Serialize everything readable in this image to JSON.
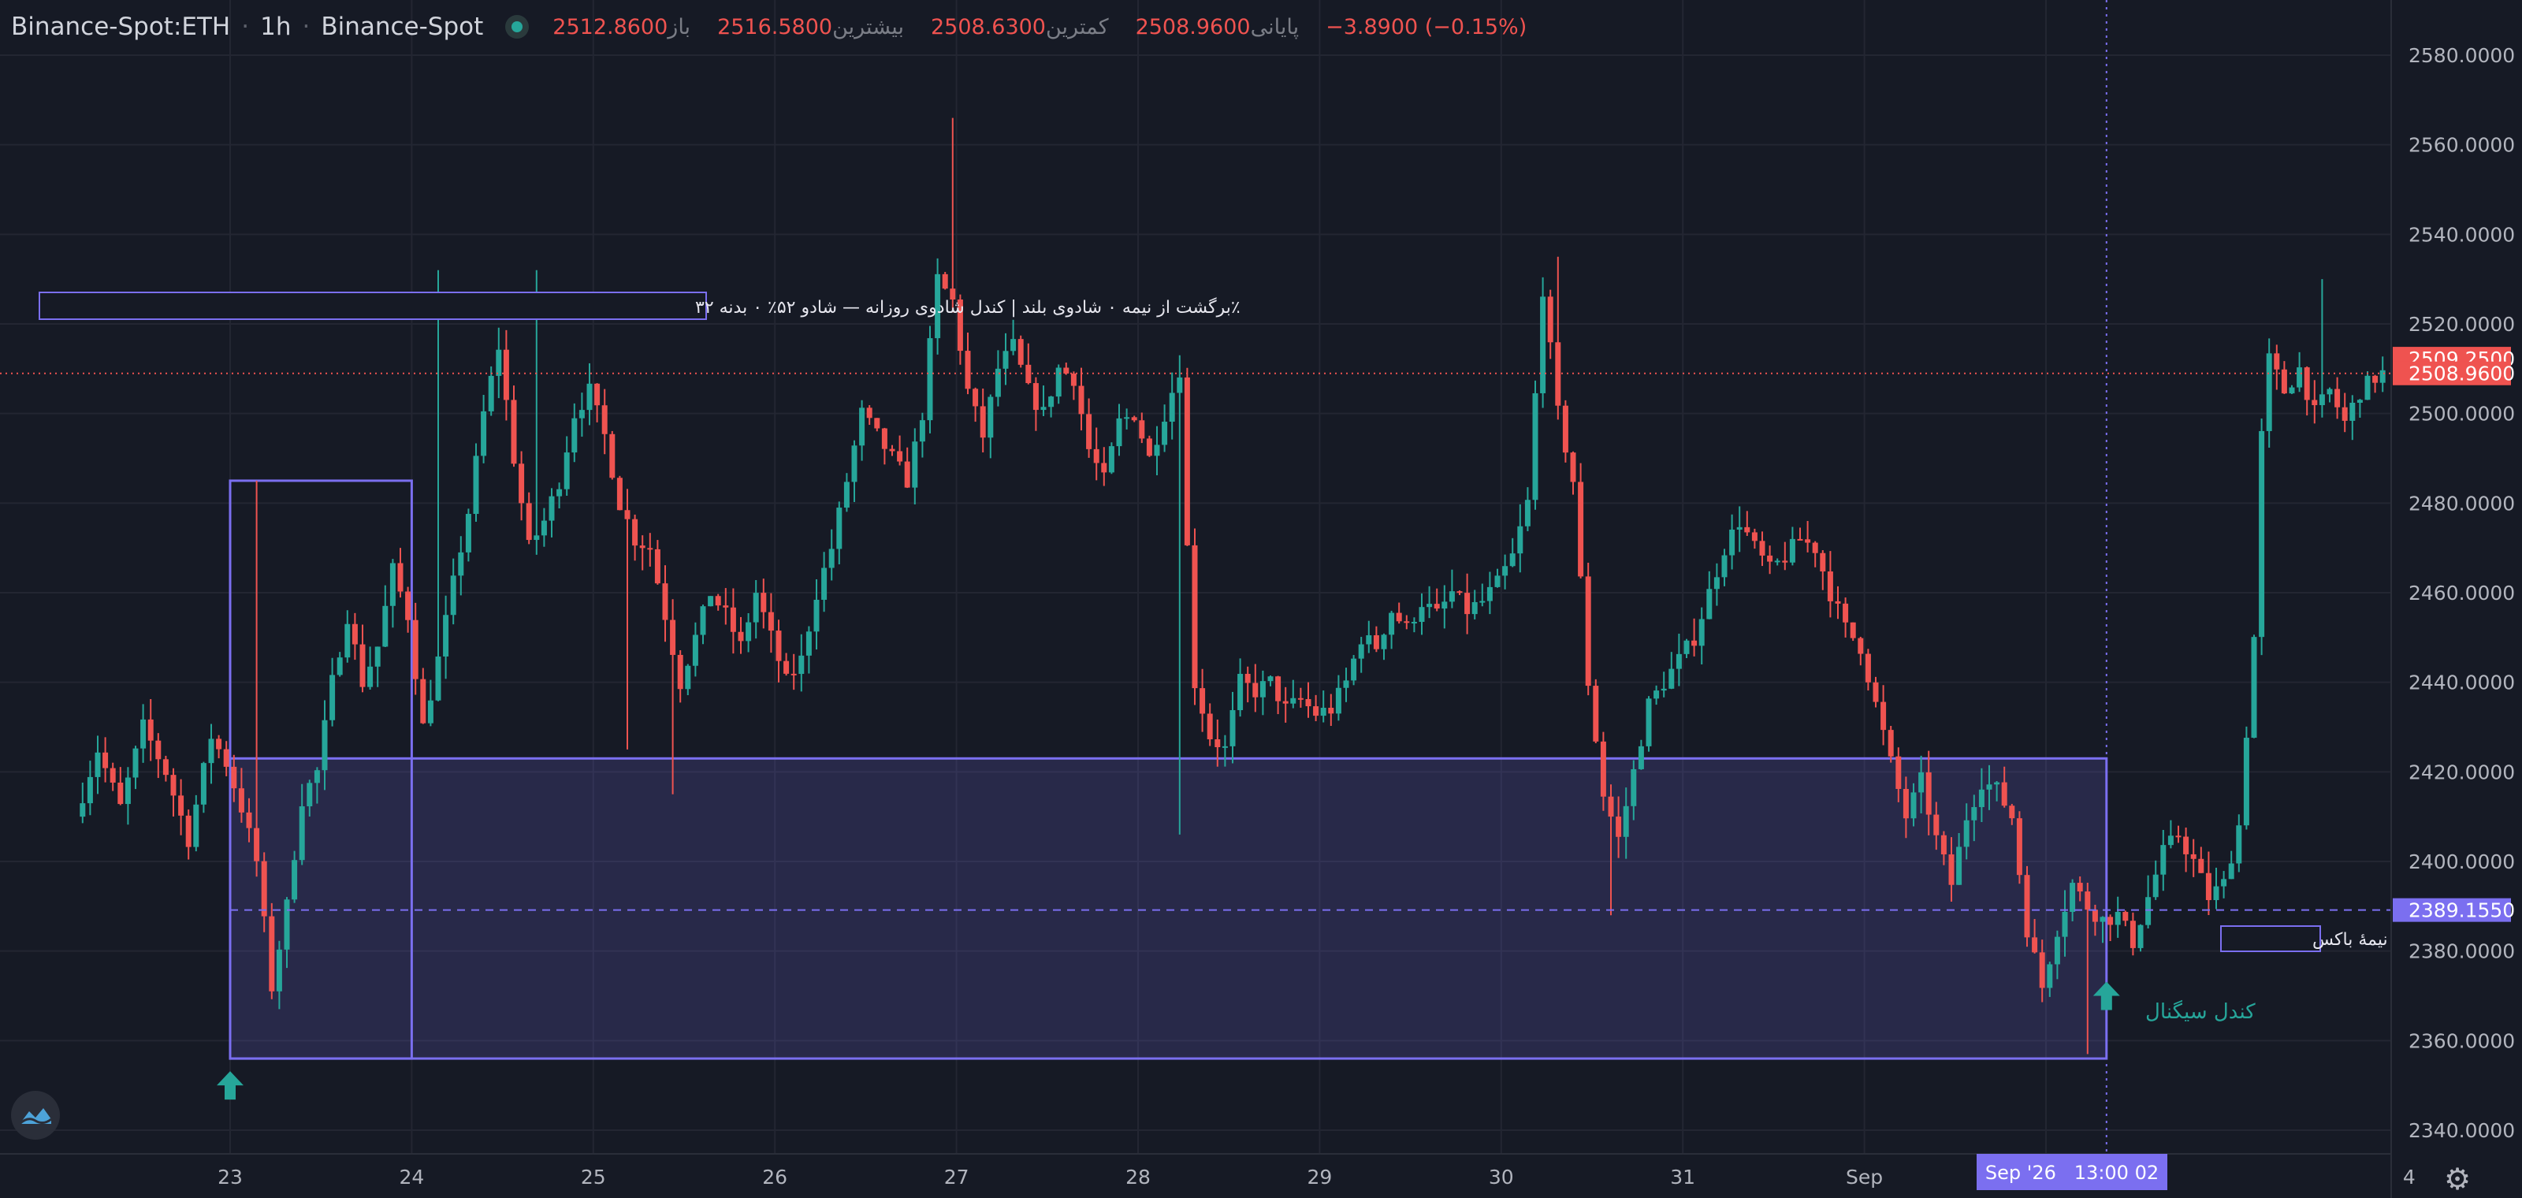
{
  "header": {
    "symbol": "Binance-Spot:ETH",
    "interval": "1h",
    "exchange": "Binance-Spot",
    "ohlc": [
      {
        "label": "باز",
        "value": "2512.8600"
      },
      {
        "label": "بیشترین",
        "value": "2516.5800"
      },
      {
        "label": "کمترین",
        "value": "2508.6300"
      },
      {
        "label": "پایانی",
        "value": "2508.9600"
      }
    ],
    "change": "−3.8900 (−0.15%)"
  },
  "annotations": {
    "pattern_label": "٪برگشت از نیمه ۰ شادوی بلند | کندل شادوی روزانه — شادو ۵۲٪ ۰ بدنه ۳۲",
    "box_mid_label": "نیمهٔ باکس",
    "signal_label": "کندل سیگنال"
  },
  "crosshair": {
    "time_label": "Sep '26   13:00 02"
  },
  "colors": {
    "up": "#26a69a",
    "down": "#ef5350",
    "box": "#7b6ff0",
    "bg": "#161a25",
    "grid": "#232632",
    "text": "#b2b5be"
  },
  "chart_data": {
    "type": "candlestick",
    "y_range": [
      2330,
      2590
    ],
    "y_ticks": [
      "2580.0000",
      "2560.0000",
      "2540.0000",
      "2520.0000",
      "2500.0000",
      "2480.0000",
      "2460.0000",
      "2440.0000",
      "2420.0000",
      "2400.0000",
      "2380.0000",
      "2360.0000",
      "2340.0000"
    ],
    "x_range": [
      0,
      289
    ],
    "x_ticks": [
      {
        "label": "23",
        "x": 20
      },
      {
        "label": "24",
        "x": 44
      },
      {
        "label": "25",
        "x": 68
      },
      {
        "label": "26",
        "x": 92
      },
      {
        "label": "27",
        "x": 116
      },
      {
        "label": "28",
        "x": 140
      },
      {
        "label": "29",
        "x": 164
      },
      {
        "label": "30",
        "x": 188
      },
      {
        "label": "31",
        "x": 212
      },
      {
        "label": "Sep",
        "x": 236
      },
      {
        "label": "2",
        "x": 260
      },
      {
        "label": "4",
        "x": 308
      }
    ],
    "price_lines": [
      {
        "label": "2509.2500",
        "value": 2509.25,
        "style": "badge"
      },
      {
        "label": "2508.9600",
        "value": 2508.96,
        "style": "dotted"
      },
      {
        "label": "2389.1550",
        "value": 2389.155,
        "style": "dashed"
      }
    ],
    "boxes": [
      {
        "x0": 20,
        "x1": 44,
        "y0": 2356,
        "y1": 2485
      },
      {
        "x0": 20,
        "x1": 268,
        "y0": 2356,
        "y1": 2423
      }
    ],
    "crosshair_x": 268,
    "signal_arrows": [
      {
        "x": 20,
        "y": 2350
      },
      {
        "x": 268,
        "y": 2370
      }
    ],
    "candle_path": [
      {
        "x": 0,
        "v": 2410
      },
      {
        "x": 3,
        "v": 2425
      },
      {
        "x": 6,
        "v": 2412
      },
      {
        "x": 9,
        "v": 2430
      },
      {
        "x": 12,
        "v": 2420
      },
      {
        "x": 15,
        "v": 2405
      },
      {
        "x": 18,
        "v": 2428
      },
      {
        "x": 20,
        "v": 2422
      },
      {
        "x": 22,
        "v": 2412
      },
      {
        "x": 24,
        "v": 2400
      },
      {
        "x": 26,
        "v": 2372
      },
      {
        "x": 28,
        "v": 2390
      },
      {
        "x": 30,
        "v": 2414
      },
      {
        "x": 32,
        "v": 2420
      },
      {
        "x": 34,
        "v": 2440
      },
      {
        "x": 36,
        "v": 2455
      },
      {
        "x": 38,
        "v": 2440
      },
      {
        "x": 40,
        "v": 2448
      },
      {
        "x": 42,
        "v": 2465
      },
      {
        "x": 44,
        "v": 2455
      },
      {
        "x": 46,
        "v": 2430
      },
      {
        "x": 48,
        "v": 2445
      },
      {
        "x": 50,
        "v": 2462
      },
      {
        "x": 52,
        "v": 2478
      },
      {
        "x": 54,
        "v": 2500
      },
      {
        "x": 56,
        "v": 2515
      },
      {
        "x": 58,
        "v": 2490
      },
      {
        "x": 60,
        "v": 2470
      },
      {
        "x": 62,
        "v": 2476
      },
      {
        "x": 64,
        "v": 2485
      },
      {
        "x": 66,
        "v": 2500
      },
      {
        "x": 68,
        "v": 2505
      },
      {
        "x": 70,
        "v": 2495
      },
      {
        "x": 72,
        "v": 2480
      },
      {
        "x": 74,
        "v": 2472
      },
      {
        "x": 76,
        "v": 2470
      },
      {
        "x": 78,
        "v": 2455
      },
      {
        "x": 80,
        "v": 2440
      },
      {
        "x": 82,
        "v": 2450
      },
      {
        "x": 84,
        "v": 2460
      },
      {
        "x": 86,
        "v": 2455
      },
      {
        "x": 88,
        "v": 2448
      },
      {
        "x": 90,
        "v": 2460
      },
      {
        "x": 92,
        "v": 2450
      },
      {
        "x": 94,
        "v": 2440
      },
      {
        "x": 96,
        "v": 2445
      },
      {
        "x": 98,
        "v": 2460
      },
      {
        "x": 100,
        "v": 2470
      },
      {
        "x": 102,
        "v": 2485
      },
      {
        "x": 104,
        "v": 2500
      },
      {
        "x": 106,
        "v": 2495
      },
      {
        "x": 108,
        "v": 2490
      },
      {
        "x": 110,
        "v": 2485
      },
      {
        "x": 112,
        "v": 2500
      },
      {
        "x": 114,
        "v": 2530
      },
      {
        "x": 116,
        "v": 2525
      },
      {
        "x": 118,
        "v": 2505
      },
      {
        "x": 120,
        "v": 2495
      },
      {
        "x": 122,
        "v": 2510
      },
      {
        "x": 124,
        "v": 2515
      },
      {
        "x": 126,
        "v": 2505
      },
      {
        "x": 128,
        "v": 2500
      },
      {
        "x": 130,
        "v": 2510
      },
      {
        "x": 132,
        "v": 2508
      },
      {
        "x": 134,
        "v": 2492
      },
      {
        "x": 136,
        "v": 2485
      },
      {
        "x": 138,
        "v": 2498
      },
      {
        "x": 140,
        "v": 2500
      },
      {
        "x": 142,
        "v": 2490
      },
      {
        "x": 144,
        "v": 2500
      },
      {
        "x": 146,
        "v": 2510
      },
      {
        "x": 147,
        "v": 2470
      },
      {
        "x": 148,
        "v": 2440
      },
      {
        "x": 150,
        "v": 2428
      },
      {
        "x": 152,
        "v": 2425
      },
      {
        "x": 154,
        "v": 2440
      },
      {
        "x": 156,
        "v": 2438
      },
      {
        "x": 158,
        "v": 2440
      },
      {
        "x": 160,
        "v": 2434
      },
      {
        "x": 162,
        "v": 2436
      },
      {
        "x": 164,
        "v": 2433
      },
      {
        "x": 166,
        "v": 2434
      },
      {
        "x": 168,
        "v": 2440
      },
      {
        "x": 170,
        "v": 2450
      },
      {
        "x": 172,
        "v": 2448
      },
      {
        "x": 174,
        "v": 2456
      },
      {
        "x": 176,
        "v": 2452
      },
      {
        "x": 178,
        "v": 2458
      },
      {
        "x": 180,
        "v": 2455
      },
      {
        "x": 182,
        "v": 2460
      },
      {
        "x": 184,
        "v": 2456
      },
      {
        "x": 186,
        "v": 2458
      },
      {
        "x": 188,
        "v": 2462
      },
      {
        "x": 190,
        "v": 2468
      },
      {
        "x": 192,
        "v": 2480
      },
      {
        "x": 194,
        "v": 2528
      },
      {
        "x": 196,
        "v": 2500
      },
      {
        "x": 198,
        "v": 2485
      },
      {
        "x": 200,
        "v": 2440
      },
      {
        "x": 202,
        "v": 2415
      },
      {
        "x": 204,
        "v": 2405
      },
      {
        "x": 206,
        "v": 2420
      },
      {
        "x": 208,
        "v": 2435
      },
      {
        "x": 210,
        "v": 2440
      },
      {
        "x": 212,
        "v": 2445
      },
      {
        "x": 214,
        "v": 2450
      },
      {
        "x": 216,
        "v": 2460
      },
      {
        "x": 218,
        "v": 2470
      },
      {
        "x": 220,
        "v": 2476
      },
      {
        "x": 222,
        "v": 2470
      },
      {
        "x": 224,
        "v": 2465
      },
      {
        "x": 226,
        "v": 2468
      },
      {
        "x": 228,
        "v": 2472
      },
      {
        "x": 230,
        "v": 2470
      },
      {
        "x": 232,
        "v": 2460
      },
      {
        "x": 234,
        "v": 2452
      },
      {
        "x": 236,
        "v": 2448
      },
      {
        "x": 238,
        "v": 2435
      },
      {
        "x": 240,
        "v": 2422
      },
      {
        "x": 242,
        "v": 2410
      },
      {
        "x": 244,
        "v": 2418
      },
      {
        "x": 246,
        "v": 2405
      },
      {
        "x": 248,
        "v": 2395
      },
      {
        "x": 250,
        "v": 2410
      },
      {
        "x": 252,
        "v": 2418
      },
      {
        "x": 254,
        "v": 2416
      },
      {
        "x": 256,
        "v": 2410
      },
      {
        "x": 258,
        "v": 2385
      },
      {
        "x": 260,
        "v": 2372
      },
      {
        "x": 262,
        "v": 2385
      },
      {
        "x": 264,
        "v": 2395
      },
      {
        "x": 266,
        "v": 2390
      },
      {
        "x": 268,
        "v": 2387
      },
      {
        "x": 270,
        "v": 2388
      },
      {
        "x": 272,
        "v": 2382
      },
      {
        "x": 274,
        "v": 2392
      },
      {
        "x": 276,
        "v": 2402
      },
      {
        "x": 278,
        "v": 2406
      },
      {
        "x": 280,
        "v": 2400
      },
      {
        "x": 282,
        "v": 2392
      },
      {
        "x": 284,
        "v": 2395
      },
      {
        "x": 286,
        "v": 2408
      },
      {
        "x": 288,
        "v": 2450
      },
      {
        "x": 289,
        "v": 2495
      },
      {
        "x": 290,
        "v": 2512
      },
      {
        "x": 292,
        "v": 2505
      },
      {
        "x": 294,
        "v": 2510
      },
      {
        "x": 296,
        "v": 2500
      },
      {
        "x": 298,
        "v": 2505
      },
      {
        "x": 300,
        "v": 2498
      },
      {
        "x": 302,
        "v": 2505
      },
      {
        "x": 304,
        "v": 2508
      },
      {
        "x": 305,
        "v": 2508.96
      }
    ],
    "wick_highlights": [
      {
        "x": 23,
        "high": 2485
      },
      {
        "x": 47,
        "high": 2532
      },
      {
        "x": 60,
        "high": 2532
      },
      {
        "x": 115,
        "high": 2566
      },
      {
        "x": 195,
        "high": 2535
      },
      {
        "x": 145,
        "low": 2406
      },
      {
        "x": 202,
        "low": 2388
      },
      {
        "x": 265,
        "low": 2357
      },
      {
        "x": 72,
        "low": 2425
      },
      {
        "x": 78,
        "low": 2415
      },
      {
        "x": 296,
        "high": 2530
      }
    ]
  }
}
